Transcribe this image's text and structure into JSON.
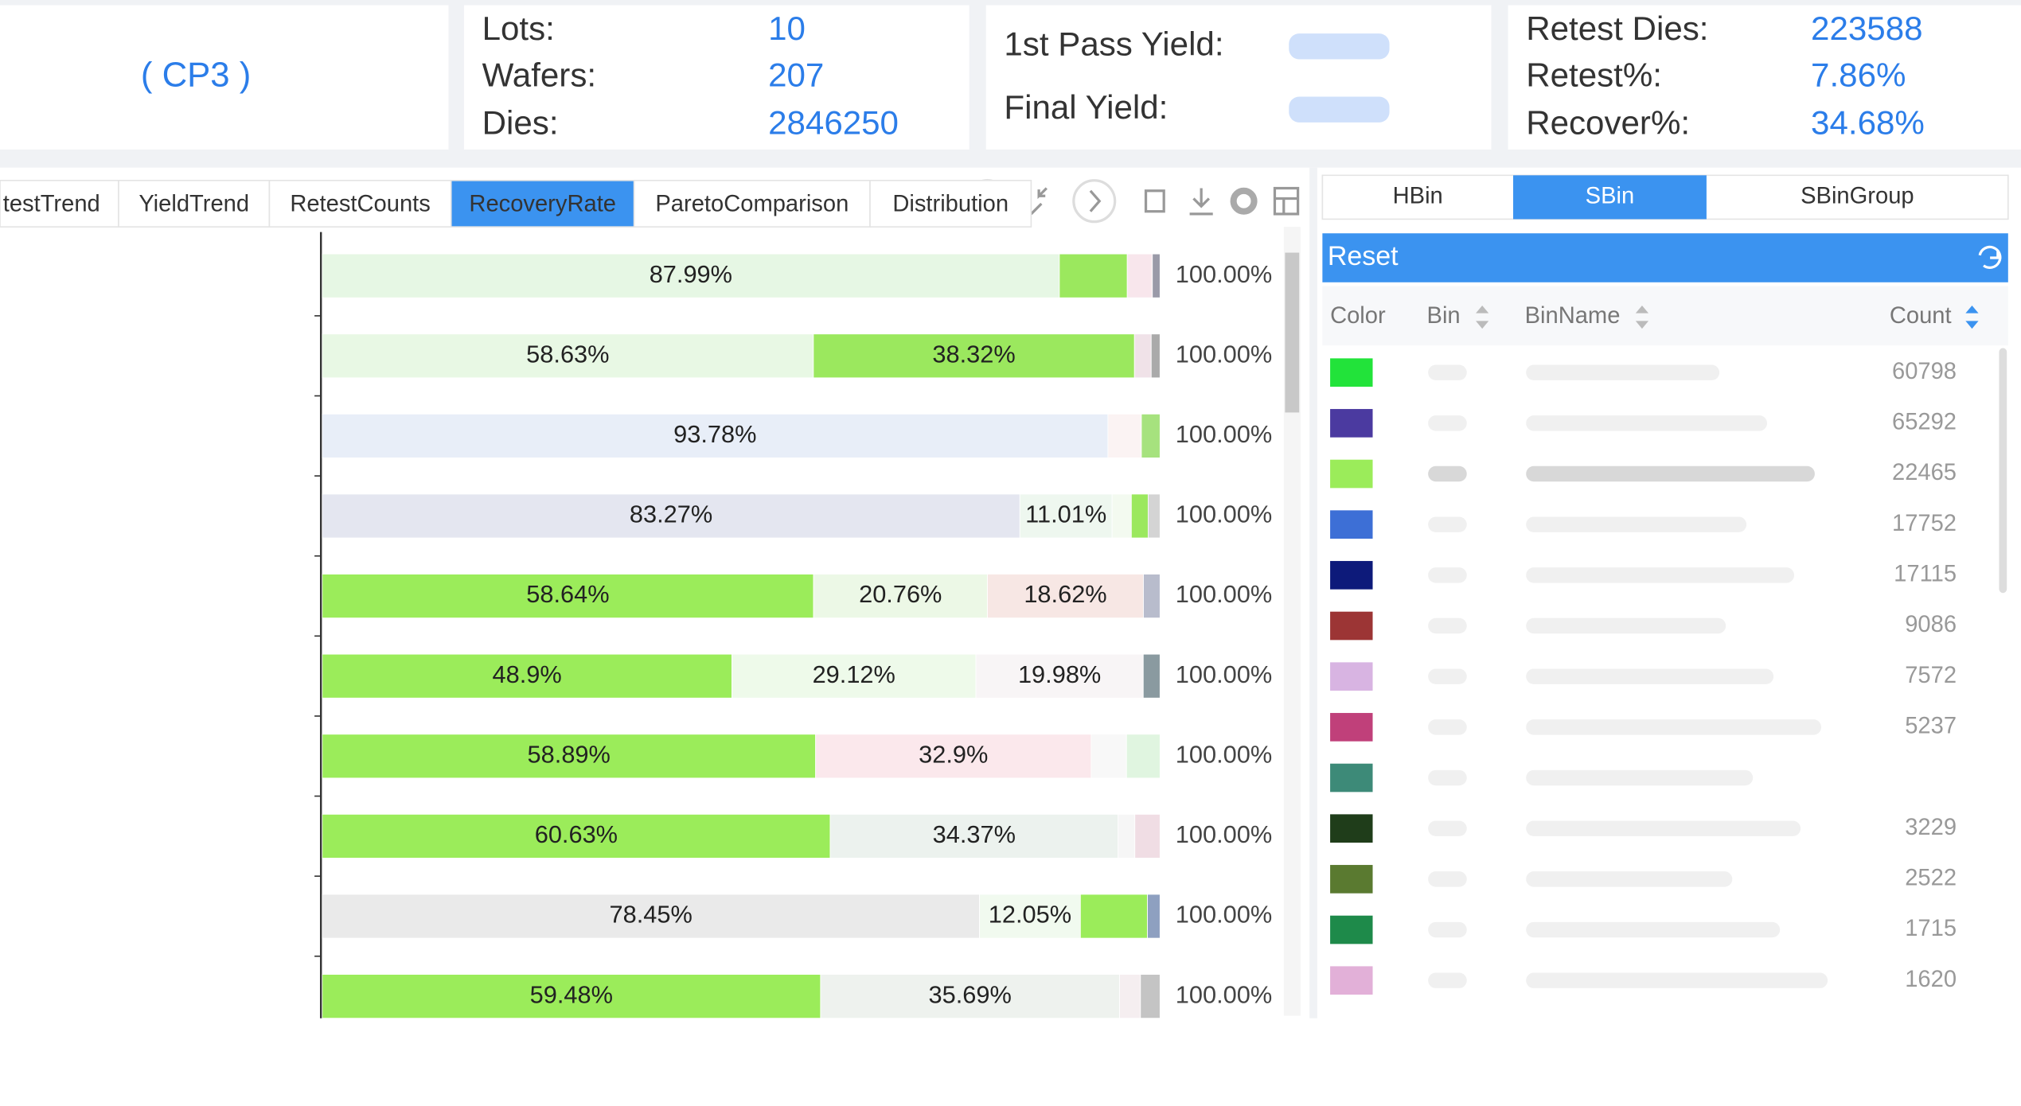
{
  "header": {
    "title": "( CP3 )",
    "lots_label": "Lots:",
    "lots": 10,
    "wafers_label": "Wafers:",
    "wafers": 207,
    "dies_label": "Dies:",
    "dies": 2846250,
    "first_pass_yield_label": "1st Pass Yield:",
    "final_yield_label": "Final Yield:",
    "retest_dies_label": "Retest Dies:",
    "retest_dies": 223588,
    "retest_pct_label": "Retest%:",
    "retest_pct": "7.86%",
    "recover_pct_label": "Recover%:",
    "recover_pct": "34.68%"
  },
  "tabs": [
    "testTrend",
    "YieldTrend",
    "RetestCounts",
    "RecoveryRate",
    "ParetoComparison",
    "Distribution"
  ],
  "active_tab": 3,
  "recovery_chart": {
    "rows": [
      {
        "total_label": "100.00%",
        "segments": [
          {
            "value": 87.99,
            "label": "87.99%",
            "color": "#e6f7e4"
          },
          {
            "value": 8.1,
            "color": "#9be85e"
          },
          {
            "value": 3.0,
            "color": "#f8e6ec"
          },
          {
            "value": 0.91,
            "color": "#9a9aa8"
          }
        ]
      },
      {
        "total_label": "100.00%",
        "segments": [
          {
            "value": 58.63,
            "label": "58.63%",
            "color": "#e8f8e4"
          },
          {
            "value": 38.32,
            "label": "38.32%",
            "color": "#9be85e"
          },
          {
            "value": 2.0,
            "color": "#f0e2e8"
          },
          {
            "value": 1.05,
            "color": "#aaaaaa"
          }
        ]
      },
      {
        "total_label": "100.00%",
        "segments": [
          {
            "value": 93.78,
            "label": "93.78%",
            "color": "#e8eef8"
          },
          {
            "value": 4.0,
            "color": "#fbf3f3"
          },
          {
            "value": 2.22,
            "color": "#a6e27e"
          }
        ]
      },
      {
        "total_label": "100.00%",
        "segments": [
          {
            "value": 83.27,
            "label": "83.27%",
            "color": "#e4e6f0"
          },
          {
            "value": 11.01,
            "label": "11.01%",
            "color": "#eef7ef"
          },
          {
            "value": 2.3,
            "color": "#f3faf0"
          },
          {
            "value": 2.0,
            "color": "#9be85e"
          },
          {
            "value": 1.42,
            "color": "#d4d4d4"
          }
        ]
      },
      {
        "total_label": "100.00%",
        "segments": [
          {
            "value": 58.64,
            "label": "58.64%",
            "color": "#9bec5a"
          },
          {
            "value": 20.76,
            "label": "20.76%",
            "color": "#ecf8e6"
          },
          {
            "value": 18.62,
            "label": "18.62%",
            "color": "#f7e7e4"
          },
          {
            "value": 1.98,
            "color": "#b8bccc"
          }
        ]
      },
      {
        "total_label": "100.00%",
        "segments": [
          {
            "value": 48.9,
            "label": "48.9%",
            "color": "#9bec5a"
          },
          {
            "value": 29.12,
            "label": "29.12%",
            "color": "#eefaea"
          },
          {
            "value": 19.98,
            "label": "19.98%",
            "color": "#f8f5f6"
          },
          {
            "value": 2.0,
            "color": "#8a9aa0"
          }
        ]
      },
      {
        "total_label": "100.00%",
        "segments": [
          {
            "value": 58.89,
            "label": "58.89%",
            "color": "#9bec5a"
          },
          {
            "value": 32.9,
            "label": "32.9%",
            "color": "#fbe8ec"
          },
          {
            "value": 4.21,
            "color": "#f8f8f8"
          },
          {
            "value": 4.0,
            "color": "#e0f5e0"
          }
        ]
      },
      {
        "total_label": "100.00%",
        "segments": [
          {
            "value": 60.63,
            "label": "60.63%",
            "color": "#9bec5a"
          },
          {
            "value": 34.37,
            "label": "34.37%",
            "color": "#ecf2ee"
          },
          {
            "value": 2.0,
            "color": "#f6f6f6"
          },
          {
            "value": 3.0,
            "color": "#f0dde4"
          }
        ]
      },
      {
        "total_label": "100.00%",
        "segments": [
          {
            "value": 78.45,
            "label": "78.45%",
            "color": "#eaeaea"
          },
          {
            "value": 12.05,
            "label": "12.05%",
            "color": "#f1faef"
          },
          {
            "value": 8.0,
            "color": "#9bec5a"
          },
          {
            "value": 1.5,
            "color": "#8ea0c0"
          }
        ]
      },
      {
        "total_label": "100.00%",
        "segments": [
          {
            "value": 59.48,
            "label": "59.48%",
            "color": "#9bec5a"
          },
          {
            "value": 35.69,
            "label": "35.69%",
            "color": "#eef2ee"
          },
          {
            "value": 2.5,
            "color": "#f5eef0"
          },
          {
            "value": 2.33,
            "color": "#c4c4c4"
          }
        ]
      }
    ]
  },
  "bin_tabs": [
    "HBin",
    "SBin",
    "SBinGroup"
  ],
  "active_bin_tab": 1,
  "reset_label": "Reset",
  "bin_table": {
    "columns": [
      "Color",
      "Bin",
      "BinName",
      "Count"
    ],
    "rows": [
      {
        "color": "#22e33a",
        "count": 60798
      },
      {
        "color": "#4b3aa0",
        "count": 65292
      },
      {
        "color": "#9bec5a",
        "count": 22465,
        "selected": true
      },
      {
        "color": "#3d6fd6",
        "count": 17752
      },
      {
        "color": "#0d1a7a",
        "count": 17115
      },
      {
        "color": "#9c3535",
        "count": 9086
      },
      {
        "color": "#d8b4e2",
        "count": 7572
      },
      {
        "color": "#c0407a",
        "count": 5237
      },
      {
        "color": "#3d8a78",
        "count": null
      },
      {
        "color": "#1f3d1a",
        "count": 3229
      },
      {
        "color": "#5a7a30",
        "count": 2522
      },
      {
        "color": "#1e8a4a",
        "count": 1715
      },
      {
        "color": "#e2b0d8",
        "count": 1620
      }
    ]
  }
}
